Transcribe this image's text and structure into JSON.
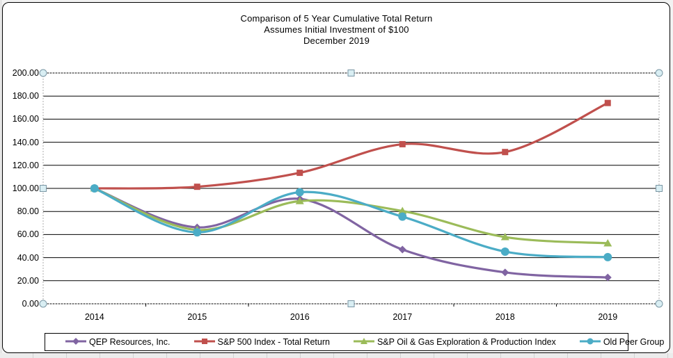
{
  "title": {
    "line1": "Comparison of 5 Year Cumulative Total Return",
    "line2": "Assumes Initial Investment of $100",
    "line3": "December 2019"
  },
  "chart_data": {
    "type": "line",
    "smooth": true,
    "grid": "horizontal",
    "legend_position": "bottom",
    "categories": [
      "2014",
      "2015",
      "2016",
      "2017",
      "2018",
      "2019"
    ],
    "series": [
      {
        "name": "QEP Resources, Inc.",
        "color": "#8064A2",
        "marker": "diamond",
        "values": [
          100.0,
          66.2,
          90.9,
          47.0,
          27.2,
          22.8
        ]
      },
      {
        "name": "S&P 500 Index - Total Return",
        "color": "#C0504D",
        "marker": "square",
        "values": [
          100.0,
          101.4,
          113.5,
          138.3,
          131.5,
          174.0
        ]
      },
      {
        "name": "S&P Oil & Gas Exploration & Production Index",
        "color": "#9BBB59",
        "marker": "triangle",
        "values": [
          100.0,
          64.0,
          89.0,
          80.4,
          57.8,
          52.4
        ]
      },
      {
        "name": "Old Peer Group",
        "color": "#4BACC6",
        "marker": "circle",
        "values": [
          100.0,
          61.9,
          96.7,
          75.5,
          45.2,
          40.4
        ]
      }
    ],
    "ylim": [
      0,
      200
    ],
    "ytick_step": 20,
    "y_tick_labels": [
      "0.00",
      "20.00",
      "40.00",
      "60.00",
      "80.00",
      "100.00",
      "120.00",
      "140.00",
      "160.00",
      "180.00",
      "200.00"
    ],
    "xlabel": "",
    "ylabel": "",
    "colors": {
      "gridline": "#000000",
      "selection_handle_fill": "#D9EEF3",
      "selection_handle_stroke": "#7A96A4",
      "selection_dash": "#ABABAB"
    }
  }
}
